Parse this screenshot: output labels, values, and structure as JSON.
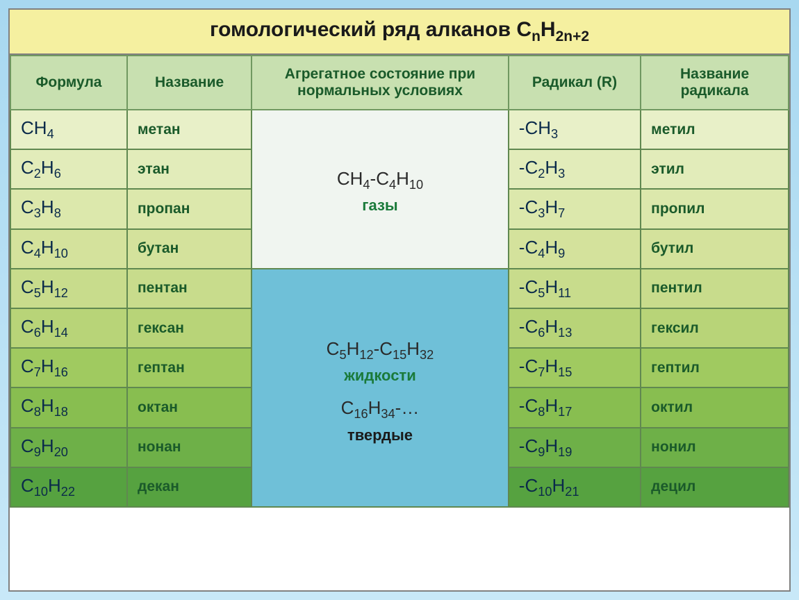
{
  "title": {
    "pre": "гомологический ряд алканов С",
    "sub1": "n",
    "mid": "H",
    "sub2": "2n+2"
  },
  "columns": {
    "formula": "Формула",
    "name": "Название",
    "state": "Агрегатное состояние при нормальных условиях",
    "radical": "Радикал (R)",
    "radical_name": "Название радикала"
  },
  "column_widths": {
    "formula": "15%",
    "name": "16%",
    "state": "33%",
    "radical": "17%",
    "rname": "19%"
  },
  "state_groups": {
    "gas": {
      "rows": 4,
      "range": {
        "a": "CH",
        "a_sub": "4",
        "dash": "-C",
        "b_sub": "4",
        "c": "H",
        "c_sub": "10"
      },
      "label": "газы"
    },
    "liquid_solid": {
      "rows": 6,
      "liquid_range": {
        "a": "C",
        "a_sub": "5",
        "b": "H",
        "b_sub": "12",
        "dash": "-C",
        "c_sub": "15",
        "d": "H",
        "d_sub": "32"
      },
      "liquid_label": "жидкости",
      "solid_range": {
        "a": "C",
        "a_sub": "16",
        "b": "H",
        "b_sub": "34",
        "tail": "-…"
      },
      "solid_label": "твердые"
    }
  },
  "rows": [
    {
      "bg": "#e8f0c8",
      "f": "CH",
      "fs": "4",
      "name": "метан",
      "r_pre": "-CH",
      "rs": "3",
      "rname": "метил"
    },
    {
      "bg": "#e2ecba",
      "f": "C",
      "fp": "2",
      "fm": "H",
      "fs": "6",
      "name": "этан",
      "r_pre": "-C",
      "rp": "2",
      "rm": "H",
      "rs": "3",
      "rname": "этил"
    },
    {
      "bg": "#dce8ac",
      "f": "C",
      "fp": "3",
      "fm": "H",
      "fs": "8",
      "name": "пропан",
      "r_pre": "-C",
      "rp": "3",
      "rm": "H",
      "rs": "7",
      "rname": "пропил"
    },
    {
      "bg": "#d4e29c",
      "f": "C",
      "fp": "4",
      "fm": "H",
      "fs": "10",
      "name": "бутан",
      "r_pre": "-C",
      "rp": "4",
      "rm": "H",
      "rs": "9",
      "rname": "бутил"
    },
    {
      "bg": "#c8dc8c",
      "f": "C",
      "fp": "5",
      "fm": "H",
      "fs": "12",
      "name": "пентан",
      "r_pre": "-C",
      "rp": "5",
      "rm": "H",
      "rs": "11",
      "rname": "пентил"
    },
    {
      "bg": "#b8d478",
      "f": "C",
      "fp": "6",
      "fm": "H",
      "fs": "14",
      "name": "гексан",
      "r_pre": "-C",
      "rp": "6",
      "rm": "H",
      "rs": "13",
      "rname": "гексил"
    },
    {
      "bg": "#a0ca60",
      "f": "C",
      "fp": "7",
      "fm": "H",
      "fs": "16",
      "name": "гептан",
      "r_pre": "-C",
      "rp": "7",
      "rm": "H",
      "rs": "15",
      "rname": "гептил"
    },
    {
      "bg": "#88be50",
      "f": "C",
      "fp": "8",
      "fm": "H",
      "fs": "18",
      "name": "октан",
      "r_pre": "-C",
      "rp": "8",
      "rm": "H",
      "rs": "17",
      "rname": "октил"
    },
    {
      "bg": "#6eb048",
      "f": "C",
      "fp": "9",
      "fm": "H",
      "fs": "20",
      "name": "нонан",
      "r_pre": "-C",
      "rp": "9",
      "rm": "H",
      "rs": "19",
      "rname": "нонил"
    },
    {
      "bg": "#56a240",
      "f": "C",
      "fp": "10",
      "fm": "H",
      "fs": "22",
      "name": "декан",
      "r_pre": "-C",
      "rp": "10",
      "rm": "H",
      "rs": "21",
      "rname": "децил"
    }
  ]
}
